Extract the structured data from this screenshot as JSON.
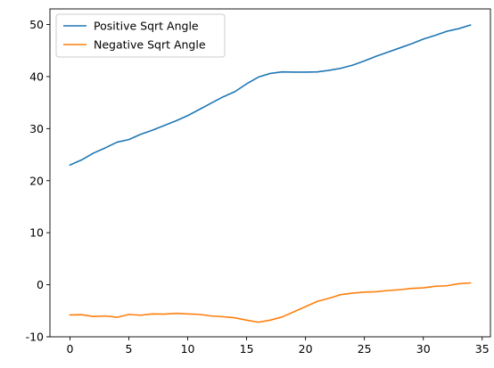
{
  "chart_data": {
    "type": "line",
    "title": "",
    "xlabel": "",
    "ylabel": "",
    "xlim": [
      -1.7,
      35.7
    ],
    "ylim": [
      -10,
      53
    ],
    "xticks": [
      0,
      5,
      10,
      15,
      20,
      25,
      30,
      35
    ],
    "yticks": [
      -10,
      0,
      10,
      20,
      30,
      40,
      50
    ],
    "grid": false,
    "legend_position": "top-left",
    "x": [
      0,
      1,
      2,
      3,
      4,
      5,
      6,
      7,
      8,
      9,
      10,
      11,
      12,
      13,
      14,
      15,
      16,
      17,
      18,
      19,
      20,
      21,
      22,
      23,
      24,
      25,
      26,
      27,
      28,
      29,
      30,
      31,
      32,
      33,
      34
    ],
    "series": [
      {
        "name": "Positive Sqrt Angle",
        "color": "#1f77b4",
        "values": [
          23.0,
          24.0,
          25.3,
          26.3,
          27.4,
          27.9,
          28.9,
          29.7,
          30.6,
          31.5,
          32.5,
          33.7,
          34.9,
          36.1,
          37.1,
          38.6,
          39.9,
          40.6,
          40.9,
          40.85,
          40.85,
          40.9,
          41.2,
          41.6,
          42.2,
          43.0,
          43.9,
          44.7,
          45.5,
          46.3,
          47.2,
          47.9,
          48.7,
          49.2,
          49.9
        ]
      },
      {
        "name": "Negative Sqrt Angle",
        "color": "#ff7f0e",
        "values": [
          -5.8,
          -5.75,
          -6.1,
          -6.0,
          -6.25,
          -5.7,
          -5.85,
          -5.6,
          -5.65,
          -5.5,
          -5.6,
          -5.7,
          -6.0,
          -6.15,
          -6.35,
          -6.8,
          -7.2,
          -6.8,
          -6.2,
          -5.2,
          -4.2,
          -3.2,
          -2.6,
          -1.9,
          -1.6,
          -1.4,
          -1.35,
          -1.1,
          -0.95,
          -0.7,
          -0.6,
          -0.3,
          -0.2,
          0.2,
          0.35
        ]
      }
    ]
  }
}
